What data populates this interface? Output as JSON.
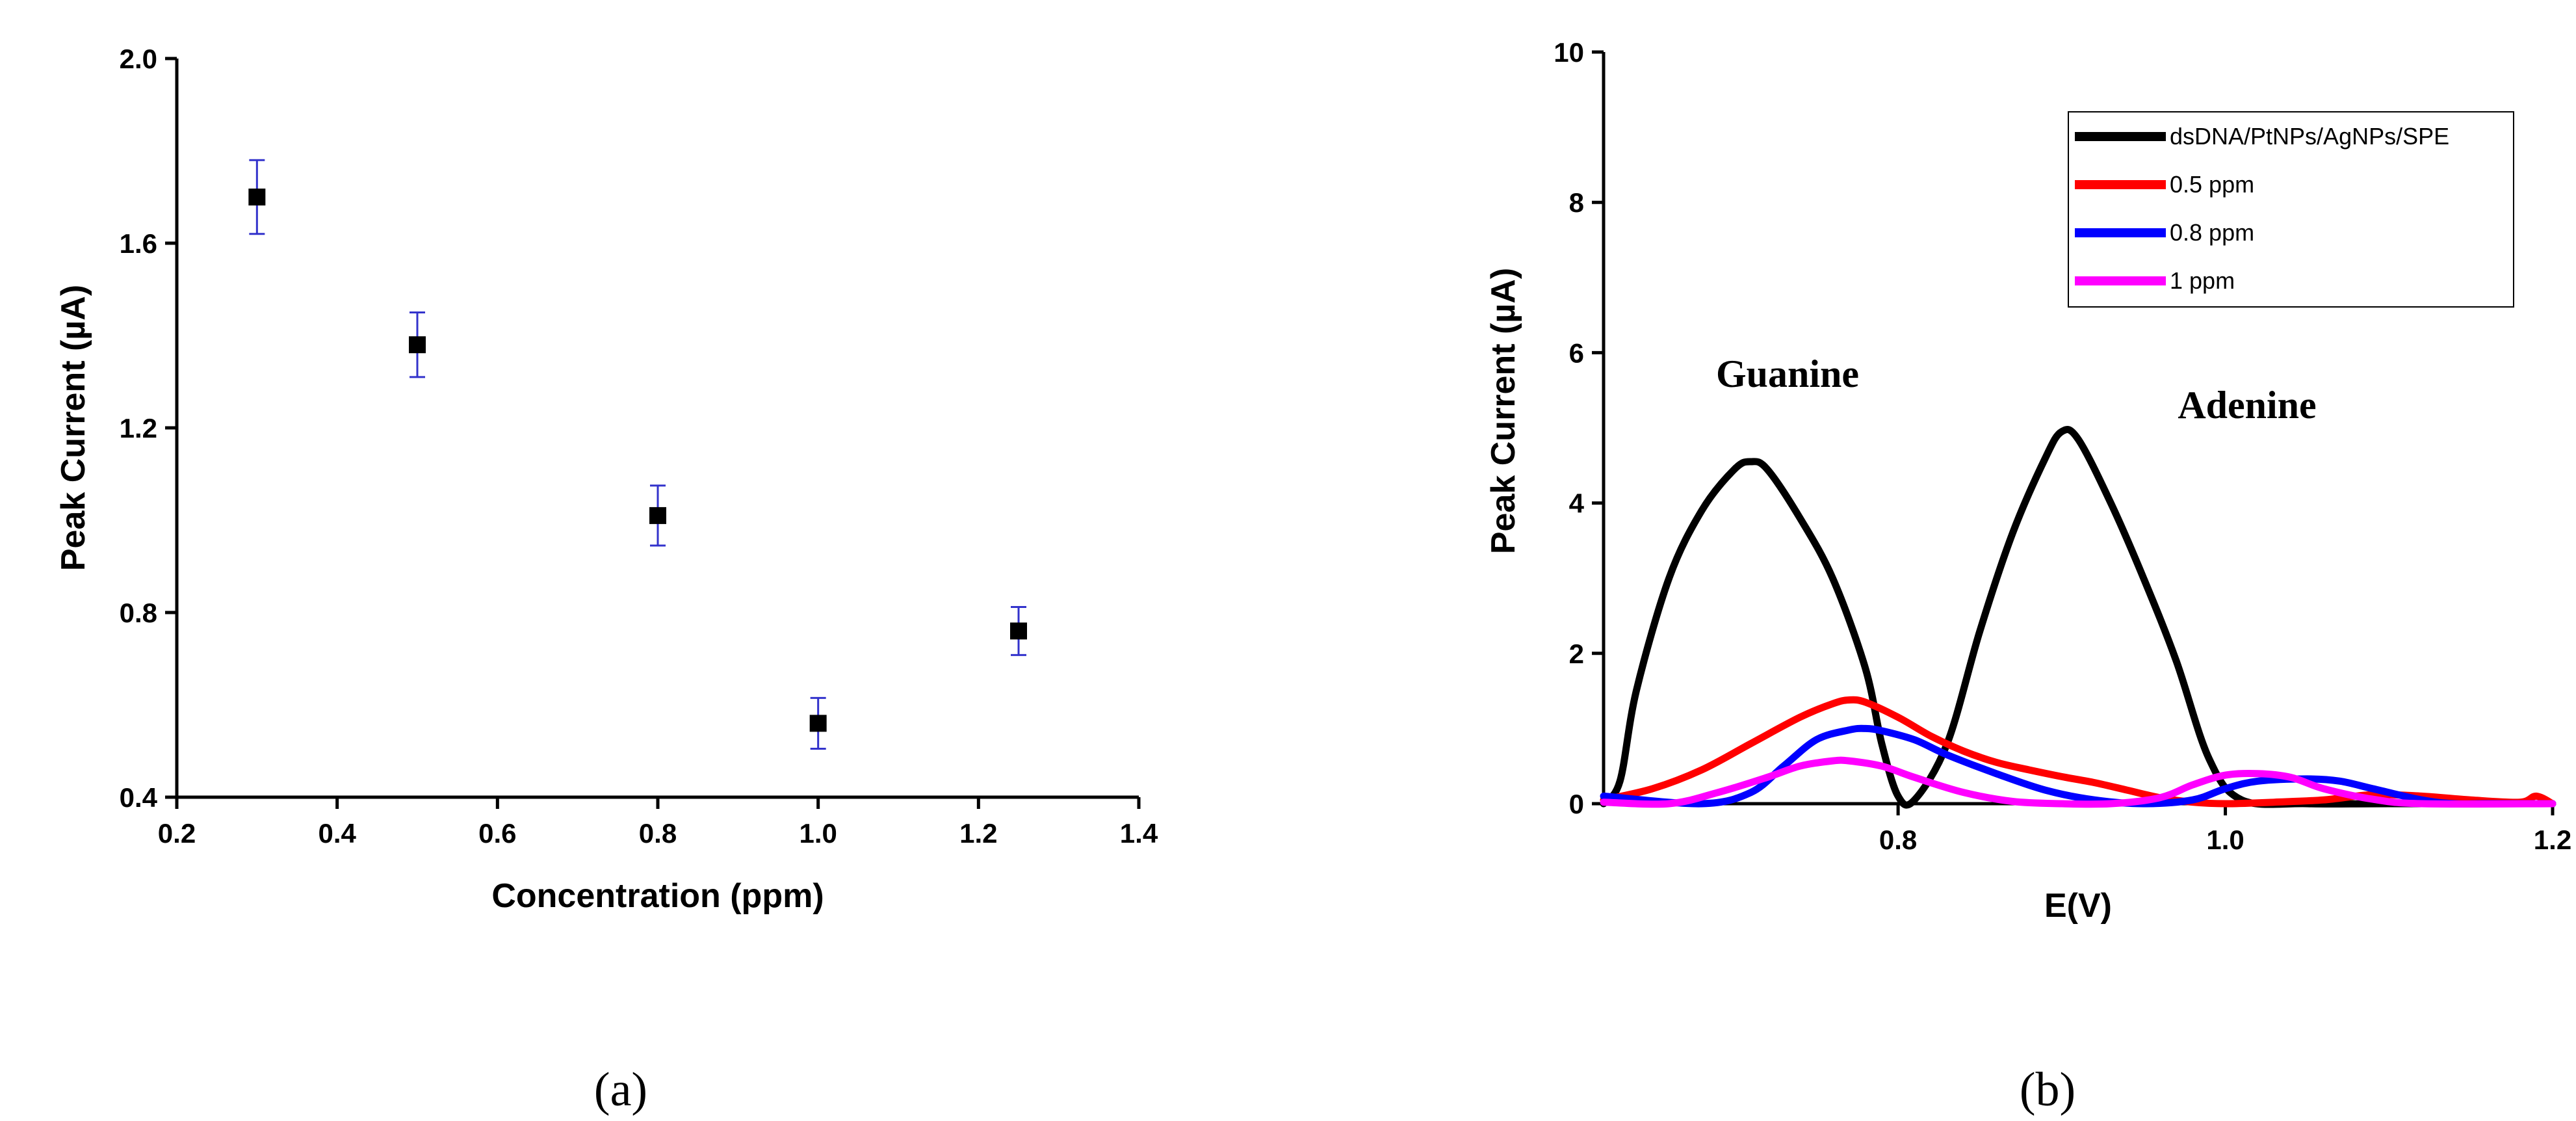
{
  "chart_data": [
    {
      "type": "scatter",
      "panel_label": "(a)",
      "xlabel": "Concentration (ppm)",
      "ylabel": "Peak Current (µA)",
      "xlim": [
        0.2,
        1.4
      ],
      "ylim": [
        0.4,
        2.0
      ],
      "x_ticks": [
        "0.2",
        "0.4",
        "0.6",
        "0.8",
        "1.0",
        "1.2",
        "1.4"
      ],
      "y_ticks": [
        "0.4",
        "0.8",
        "1.2",
        "1.6",
        "2.0"
      ],
      "x": [
        0.3,
        0.5,
        0.8,
        1.0,
        1.25
      ],
      "y": [
        1.7,
        1.38,
        1.01,
        0.56,
        0.76
      ],
      "yerr": [
        0.08,
        0.07,
        0.065,
        0.055,
        0.052
      ],
      "marker_color": "#000000",
      "errorbar_color": "#3333cc"
    },
    {
      "type": "line",
      "panel_label": "(b)",
      "xlabel": "E(V)",
      "ylabel": "Peak Current (µA)",
      "xlim": [
        0.62,
        1.2
      ],
      "ylim": [
        0,
        10
      ],
      "x_ticks": [
        "0.8",
        "1.0",
        "1.2"
      ],
      "y_ticks": [
        "0",
        "2",
        "4",
        "6",
        "8",
        "10"
      ],
      "annotations": {
        "guanine": "Guanine",
        "adenine": "Adenine"
      },
      "series": [
        {
          "name": "dsDNA/PtNPs/AgNPs/SPE",
          "color": "#000000",
          "x": [
            0.62,
            0.63,
            0.64,
            0.66,
            0.68,
            0.7,
            0.71,
            0.72,
            0.74,
            0.76,
            0.78,
            0.79,
            0.8,
            0.81,
            0.83,
            0.85,
            0.87,
            0.89,
            0.9,
            0.91,
            0.93,
            0.95,
            0.97,
            0.99,
            1.01,
            1.05,
            1.1,
            1.2
          ],
          "y": [
            0.0,
            0.3,
            1.5,
            3.0,
            3.9,
            4.45,
            4.55,
            4.45,
            3.8,
            3.0,
            1.8,
            0.8,
            0.1,
            0.05,
            0.8,
            2.3,
            3.6,
            4.6,
            4.95,
            4.85,
            4.0,
            3.0,
            1.9,
            0.6,
            0.05,
            0.0,
            0.0,
            0.0
          ]
        },
        {
          "name": "0.5 ppm",
          "color": "#ff0000",
          "x": [
            0.62,
            0.65,
            0.68,
            0.71,
            0.74,
            0.76,
            0.77,
            0.78,
            0.8,
            0.82,
            0.84,
            0.86,
            0.88,
            0.9,
            0.92,
            0.94,
            0.96,
            0.98,
            1.0,
            1.03,
            1.06,
            1.09,
            1.12,
            1.15,
            1.18,
            1.19,
            1.2
          ],
          "y": [
            0.05,
            0.2,
            0.45,
            0.8,
            1.15,
            1.33,
            1.38,
            1.35,
            1.15,
            0.9,
            0.7,
            0.55,
            0.45,
            0.36,
            0.28,
            0.18,
            0.08,
            0.02,
            0.0,
            0.02,
            0.05,
            0.12,
            0.1,
            0.05,
            0.02,
            0.1,
            0.0
          ]
        },
        {
          "name": "0.8 ppm",
          "color": "#0000ff",
          "x": [
            0.62,
            0.68,
            0.71,
            0.73,
            0.75,
            0.77,
            0.78,
            0.79,
            0.81,
            0.83,
            0.86,
            0.89,
            0.92,
            0.95,
            0.98,
            1.0,
            1.02,
            1.05,
            1.07,
            1.09,
            1.12,
            1.14,
            1.16,
            1.2
          ],
          "y": [
            0.1,
            0.0,
            0.15,
            0.5,
            0.85,
            0.98,
            1.0,
            0.97,
            0.85,
            0.65,
            0.4,
            0.18,
            0.05,
            0.0,
            0.05,
            0.2,
            0.3,
            0.33,
            0.3,
            0.2,
            0.05,
            0.0,
            0.0,
            0.0
          ]
        },
        {
          "name": "1 ppm",
          "color": "#ff00ff",
          "x": [
            0.62,
            0.66,
            0.69,
            0.72,
            0.74,
            0.76,
            0.77,
            0.79,
            0.81,
            0.84,
            0.87,
            0.9,
            0.93,
            0.96,
            0.98,
            1.0,
            1.02,
            1.04,
            1.06,
            1.09,
            1.12,
            1.2
          ],
          "y": [
            0.02,
            0.0,
            0.15,
            0.35,
            0.5,
            0.57,
            0.57,
            0.5,
            0.35,
            0.15,
            0.03,
            0.0,
            0.0,
            0.08,
            0.25,
            0.38,
            0.4,
            0.35,
            0.2,
            0.06,
            0.0,
            0.0
          ]
        }
      ]
    }
  ]
}
